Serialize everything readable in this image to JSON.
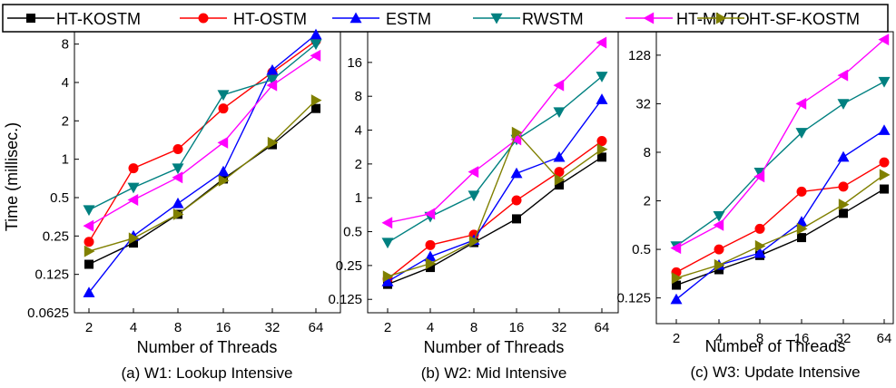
{
  "legend": {
    "entries": [
      {
        "name": "HT-KOSTM",
        "color": "#000000",
        "marker": "square"
      },
      {
        "name": "HT-OSTM",
        "color": "#ff0000",
        "marker": "circle"
      },
      {
        "name": "ESTM",
        "color": "#0000ff",
        "marker": "triangle-up"
      },
      {
        "name": "RWSTM",
        "color": "#008080",
        "marker": "triangle-down"
      },
      {
        "name": "HT-MVTO",
        "color": "#ff00ff",
        "marker": "triangle-left"
      },
      {
        "name": "HT-SF-KOSTM",
        "color": "#808000",
        "marker": "triangle-right"
      }
    ]
  },
  "ylabel": "Time (millisec.)",
  "chart_data": [
    {
      "type": "line",
      "caption": "(a) W1: Lookup Intensive",
      "xlabel": "Number of Threads",
      "x": [
        2,
        4,
        8,
        16,
        32,
        64
      ],
      "xtick_labels": [
        "2",
        "4",
        "8",
        "16",
        "32",
        "64"
      ],
      "yscale": "log2",
      "ylim": [
        0.0625,
        10
      ],
      "ytick_labels": [
        "0.0625",
        "0.125",
        "0.25",
        "0.5",
        "1",
        "2",
        "4",
        "8"
      ],
      "ytick_values": [
        0.0625,
        0.125,
        0.25,
        0.5,
        1,
        2,
        4,
        8
      ],
      "series": [
        {
          "name": "HT-KOSTM",
          "values": [
            0.15,
            0.22,
            0.37,
            0.7,
            1.3,
            2.5
          ]
        },
        {
          "name": "HT-OSTM",
          "values": [
            0.225,
            0.85,
            1.2,
            2.5,
            4.8,
            8.5
          ]
        },
        {
          "name": "ESTM",
          "values": [
            0.09,
            0.25,
            0.45,
            0.8,
            5,
            9.5
          ]
        },
        {
          "name": "RWSTM",
          "values": [
            0.4,
            0.6,
            0.85,
            3.2,
            4.2,
            8
          ]
        },
        {
          "name": "HT-MVTO",
          "values": [
            0.3,
            0.48,
            0.72,
            1.35,
            3.8,
            6.5
          ]
        },
        {
          "name": "HT-SF-KOSTM",
          "values": [
            0.19,
            0.24,
            0.37,
            0.68,
            1.35,
            2.9
          ]
        }
      ]
    },
    {
      "type": "line",
      "caption": "(b) W2: Mid Intensive",
      "xlabel": "Number of Threads",
      "x": [
        2,
        4,
        8,
        16,
        32,
        64
      ],
      "xtick_labels": [
        "2",
        "4",
        "8",
        "16",
        "32",
        "64"
      ],
      "yscale": "log2",
      "ylim": [
        0.095,
        30
      ],
      "ytick_labels": [
        "0.125",
        "0.25",
        "0.5",
        "1",
        "2",
        "4",
        "8",
        "16"
      ],
      "ytick_values": [
        0.125,
        0.25,
        0.5,
        1,
        2,
        4,
        8,
        16
      ],
      "series": [
        {
          "name": "HT-KOSTM",
          "values": [
            0.17,
            0.24,
            0.4,
            0.65,
            1.3,
            2.3
          ]
        },
        {
          "name": "HT-OSTM",
          "values": [
            0.19,
            0.38,
            0.47,
            0.95,
            1.7,
            3.2
          ]
        },
        {
          "name": "ESTM",
          "values": [
            0.18,
            0.3,
            0.42,
            1.65,
            2.3,
            7.5
          ]
        },
        {
          "name": "RWSTM",
          "values": [
            0.4,
            0.68,
            1.05,
            3.3,
            5.8,
            12
          ]
        },
        {
          "name": "HT-MVTO",
          "values": [
            0.6,
            0.72,
            1.7,
            3.3,
            10,
            24
          ]
        },
        {
          "name": "HT-SF-KOSTM",
          "values": [
            0.2,
            0.26,
            0.41,
            3.8,
            1.45,
            2.7
          ]
        }
      ]
    },
    {
      "type": "line",
      "caption": "(c) W3: Update Intensive",
      "xlabel": "Number of Threads",
      "x": [
        2,
        4,
        8,
        16,
        32,
        64
      ],
      "xtick_labels": [
        "2",
        "4",
        "8",
        "16",
        "32",
        "64"
      ],
      "yscale": "log2",
      "ylim": [
        0.06,
        250
      ],
      "ytick_labels": [
        "0.125",
        "0.5",
        "2",
        "8",
        "32",
        "128"
      ],
      "ytick_values": [
        0.125,
        0.5,
        2,
        8,
        32,
        128
      ],
      "series": [
        {
          "name": "HT-KOSTM",
          "values": [
            0.18,
            0.28,
            0.42,
            0.7,
            1.4,
            2.8
          ]
        },
        {
          "name": "HT-OSTM",
          "values": [
            0.26,
            0.5,
            0.9,
            2.6,
            3,
            6
          ]
        },
        {
          "name": "ESTM",
          "values": [
            0.12,
            0.32,
            0.45,
            1.1,
            7,
            15
          ]
        },
        {
          "name": "RWSTM",
          "values": [
            0.55,
            1.3,
            4.5,
            14,
            32,
            60
          ]
        },
        {
          "name": "HT-MVTO",
          "values": [
            0.52,
            1,
            4,
            32,
            72,
            200
          ]
        },
        {
          "name": "HT-SF-KOSTM",
          "values": [
            0.22,
            0.32,
            0.55,
            0.9,
            1.8,
            4.2
          ]
        }
      ]
    }
  ]
}
